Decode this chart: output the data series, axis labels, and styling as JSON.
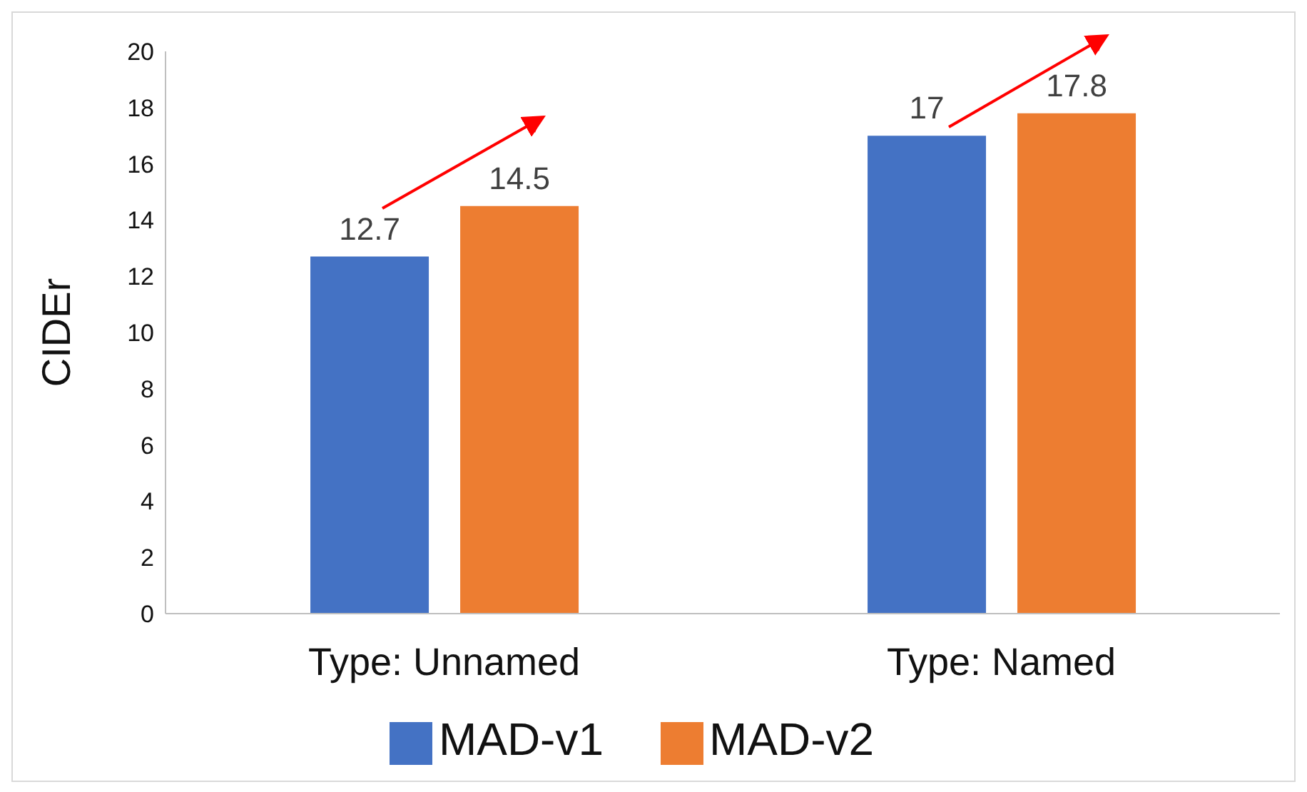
{
  "chart_data": {
    "type": "bar",
    "ylabel": "CIDEr",
    "categories": [
      "Type: Unnamed",
      "Type: Named"
    ],
    "series": [
      {
        "name": "MAD-v1",
        "color": "#4472c4",
        "values": [
          12.7,
          17
        ]
      },
      {
        "name": "MAD-v2",
        "color": "#ed7d31",
        "values": [
          14.5,
          17.8
        ]
      }
    ],
    "ylim": [
      0,
      20
    ],
    "yticks": [
      0,
      2,
      4,
      6,
      8,
      10,
      12,
      14,
      16,
      18,
      20
    ],
    "legend": "bottom",
    "data_labels": true
  }
}
